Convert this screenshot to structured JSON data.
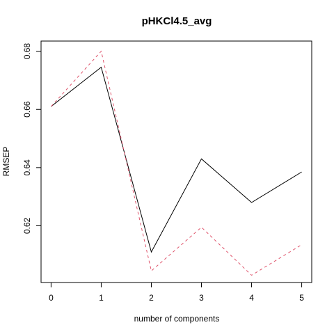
{
  "chart_data": {
    "type": "line",
    "title": "pHKCl4.5_avg",
    "xlabel": "number of components",
    "ylabel": "RMSEP",
    "x": [
      0,
      1,
      2,
      3,
      4,
      5
    ],
    "xlim": [
      -0.2,
      5.2
    ],
    "ylim": [
      0.6005,
      0.6835
    ],
    "xticks": [
      0,
      1,
      2,
      3,
      4,
      5
    ],
    "yticks": [
      0.62,
      0.64,
      0.66,
      0.68
    ],
    "ytick_labels": [
      "0.62",
      "0.64",
      "0.66",
      "0.68"
    ],
    "grid": false,
    "series": [
      {
        "values": [
          0.661,
          0.6745,
          0.611,
          0.643,
          0.628,
          0.6385
        ],
        "color": "#000000",
        "style": "solid"
      },
      {
        "values": [
          0.661,
          0.68,
          0.6045,
          0.6195,
          0.603,
          0.6135
        ],
        "color": "#DF536B",
        "style": "dashed"
      }
    ]
  }
}
